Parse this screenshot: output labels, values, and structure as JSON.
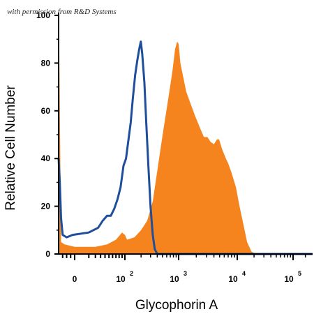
{
  "credit": "with permission from R&D Systems",
  "chart_data": {
    "type": "area",
    "xlabel": "Glycophorin A",
    "ylabel": "Relative Cell Number",
    "xscale": "biexponential",
    "ylim": [
      0,
      100
    ],
    "grid": false,
    "legend": "none",
    "y_ticks": [
      "0",
      "20",
      "40",
      "60",
      "80",
      "100"
    ],
    "x_ticks": [
      {
        "value": 0,
        "label": "0"
      },
      {
        "value": 100,
        "base": "10",
        "exp": "2"
      },
      {
        "value": 1000,
        "base": "10",
        "exp": "3"
      },
      {
        "value": 10000,
        "base": "10",
        "exp": "4"
      },
      {
        "value": 100000,
        "base": "10",
        "exp": "5"
      }
    ],
    "series": [
      {
        "style": "filled",
        "color": "#F5841F",
        "points": [
          [
            -40,
            100
          ],
          [
            -39,
            98
          ],
          [
            -34,
            5
          ],
          [
            -25,
            4
          ],
          [
            0,
            3
          ],
          [
            20,
            3
          ],
          [
            45,
            4
          ],
          [
            70,
            6
          ],
          [
            90,
            9
          ],
          [
            100,
            8
          ],
          [
            110,
            6
          ],
          [
            150,
            7
          ],
          [
            200,
            10
          ],
          [
            260,
            14
          ],
          [
            330,
            22
          ],
          [
            420,
            38
          ],
          [
            520,
            52
          ],
          [
            640,
            65
          ],
          [
            760,
            76
          ],
          [
            860,
            86
          ],
          [
            940,
            89
          ],
          [
            1000,
            88
          ],
          [
            1070,
            80
          ],
          [
            1200,
            74
          ],
          [
            1350,
            68
          ],
          [
            1600,
            63
          ],
          [
            1900,
            58
          ],
          [
            2300,
            53
          ],
          [
            2700,
            49
          ],
          [
            3100,
            49
          ],
          [
            3500,
            47
          ],
          [
            4000,
            46
          ],
          [
            4500,
            48
          ],
          [
            4900,
            48
          ],
          [
            5500,
            44
          ],
          [
            6400,
            40
          ],
          [
            7000,
            38
          ],
          [
            8000,
            34
          ],
          [
            9500,
            28
          ],
          [
            11000,
            20
          ],
          [
            13000,
            12
          ],
          [
            15000,
            5
          ],
          [
            18000,
            1
          ],
          [
            22000,
            0
          ],
          [
            300000,
            0
          ]
        ]
      },
      {
        "style": "line",
        "color": "#1F4E9A",
        "points": [
          [
            -40,
            40
          ],
          [
            -37,
            30
          ],
          [
            -34,
            15
          ],
          [
            -30,
            8
          ],
          [
            -20,
            7
          ],
          [
            -5,
            8
          ],
          [
            10,
            9
          ],
          [
            25,
            11
          ],
          [
            35,
            14
          ],
          [
            45,
            16
          ],
          [
            55,
            16
          ],
          [
            65,
            19
          ],
          [
            75,
            23
          ],
          [
            85,
            28
          ],
          [
            95,
            37
          ],
          [
            105,
            40
          ],
          [
            115,
            47
          ],
          [
            128,
            55
          ],
          [
            140,
            65
          ],
          [
            155,
            75
          ],
          [
            170,
            81
          ],
          [
            185,
            86
          ],
          [
            198,
            89
          ],
          [
            210,
            84
          ],
          [
            230,
            72
          ],
          [
            250,
            55
          ],
          [
            275,
            36
          ],
          [
            300,
            20
          ],
          [
            330,
            8
          ],
          [
            360,
            2
          ],
          [
            400,
            0
          ],
          [
            300000,
            0
          ]
        ]
      }
    ]
  }
}
